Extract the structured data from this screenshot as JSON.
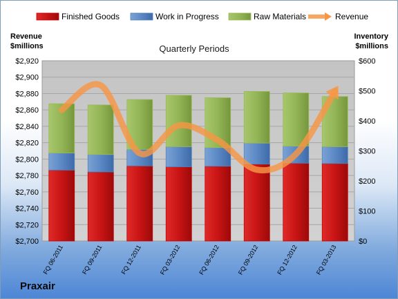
{
  "brand": "Praxair",
  "colors": {
    "finished_goods": "#c00000",
    "work_in_progress": "#4f81bd",
    "raw_materials": "#9bbb59",
    "revenue": "#f79646",
    "plot_background": "#c8c8c8"
  },
  "chart_data": {
    "type": "bar",
    "subtype": "stacked-bar-with-line",
    "title": "Quarterly Periods",
    "ylabel_left": "Revenue $millions",
    "ylabel_right": "Inventory $millions",
    "categories": [
      "FQ 06-2011",
      "FQ 09-2011",
      "FQ 12-2011",
      "FQ 03-2012",
      "FQ 06-2012",
      "FQ 09-2012",
      "FQ 12-2012",
      "FQ 03-2013"
    ],
    "ylim_left": [
      2700,
      2920
    ],
    "ylim_right": [
      0,
      600
    ],
    "left_ticks": [
      "$2,700",
      "$2,720",
      "$2,740",
      "$2,760",
      "$2,780",
      "$2,800",
      "$2,820",
      "$2,840",
      "$2,860",
      "$2,880",
      "$2,900",
      "$2,920"
    ],
    "right_ticks": [
      "$0",
      "$100",
      "$200",
      "$300",
      "$400",
      "$500",
      "$600"
    ],
    "series": [
      {
        "name": "Finished Goods",
        "axis": "right",
        "values": [
          236,
          230,
          250,
          247,
          249,
          256,
          259,
          258
        ]
      },
      {
        "name": "Work in Progress",
        "axis": "right",
        "values": [
          57,
          58,
          55,
          67,
          62,
          70,
          57,
          56
        ]
      },
      {
        "name": "Raw Materials",
        "axis": "right",
        "values": [
          164,
          165,
          166,
          171,
          166,
          172,
          177,
          167
        ]
      },
      {
        "name": "Revenue",
        "type": "line",
        "axis": "left",
        "values": [
          2860,
          2890,
          2807,
          2841,
          2823,
          2787,
          2806,
          2883
        ]
      }
    ],
    "legend_position": "top",
    "grid": true
  }
}
